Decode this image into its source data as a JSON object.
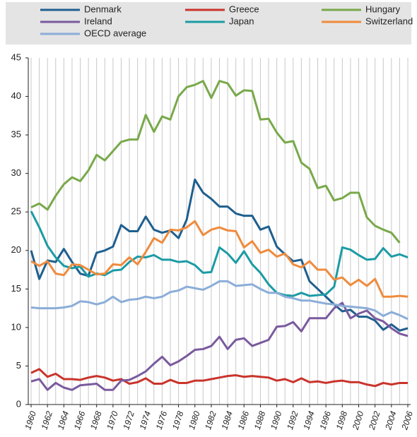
{
  "chart_data": {
    "type": "line",
    "x": [
      1960,
      1961,
      1962,
      1963,
      1964,
      1965,
      1966,
      1967,
      1968,
      1969,
      1970,
      1971,
      1972,
      1973,
      1974,
      1975,
      1976,
      1977,
      1978,
      1979,
      1980,
      1981,
      1982,
      1983,
      1984,
      1985,
      1986,
      1987,
      1988,
      1989,
      1990,
      1991,
      1992,
      1993,
      1994,
      1995,
      1996,
      1997,
      1998,
      1999,
      2000,
      2001,
      2002,
      2003,
      2004,
      2005,
      2006
    ],
    "xlim": [
      1960,
      2006
    ],
    "xticks": [
      1960,
      1962,
      1964,
      1966,
      1968,
      1970,
      1972,
      1974,
      1976,
      1978,
      1980,
      1982,
      1984,
      1986,
      1988,
      1990,
      1992,
      1994,
      1996,
      1998,
      2000,
      2002,
      2004,
      2006
    ],
    "ylim": [
      0,
      45
    ],
    "yticks": [
      0,
      5,
      10,
      15,
      20,
      25,
      30,
      35,
      40,
      45
    ],
    "grid": true,
    "legend": "top",
    "series": [
      {
        "name": "Denmark",
        "color": "#1f5f8f",
        "values": [
          20,
          16.3,
          18.7,
          18.5,
          20.2,
          18.5,
          17,
          16.7,
          19.7,
          20,
          20.5,
          23.3,
          22.5,
          22.5,
          24.4,
          22.7,
          22.3,
          22.6,
          21.6,
          24,
          29.2,
          27.5,
          26.7,
          25.7,
          25.7,
          24.8,
          24.5,
          24.5,
          22.7,
          23.1,
          20.5,
          19.5,
          18.6,
          18.8,
          16,
          15,
          14,
          13,
          12.1,
          12.3,
          11.4,
          11.4,
          10.9,
          9.7,
          10.4,
          9.6,
          9.9
        ]
      },
      {
        "name": "Greece",
        "color": "#c9342c",
        "values": [
          4.1,
          4.6,
          3.6,
          4.0,
          3.3,
          3.3,
          3.2,
          3.5,
          3.7,
          3.5,
          3.1,
          3.3,
          2.7,
          2.9,
          3.4,
          2.7,
          2.7,
          3.2,
          2.8,
          2.8,
          3.1,
          3.1,
          3.3,
          3.5,
          3.7,
          3.8,
          3.6,
          3.7,
          3.6,
          3.5,
          3.1,
          3.3,
          2.9,
          3.4,
          2.9,
          3.0,
          2.8,
          3.0,
          3.1,
          2.9,
          2.9,
          2.6,
          2.4,
          2.8,
          2.6,
          2.8,
          2.8
        ]
      },
      {
        "name": "Hungary",
        "color": "#78a94a",
        "values": [
          25.6,
          26.1,
          25.3,
          27.1,
          28.6,
          29.5,
          29.0,
          30.4,
          32.4,
          31.7,
          32.9,
          34.1,
          34.4,
          34.4,
          37.6,
          35.4,
          37.4,
          37.0,
          40.0,
          41.2,
          41.5,
          42.0,
          39.8,
          42.0,
          41.7,
          40.1,
          40.8,
          40.7,
          37.0,
          37.1,
          35.3,
          34.0,
          34.2,
          31.4,
          30.6,
          28.1,
          28.4,
          26.5,
          26.8,
          27.5,
          27.5,
          24.3,
          23.2,
          22.7,
          22.3,
          21.0,
          null
        ]
      },
      {
        "name": "Ireland",
        "color": "#7a5a9e",
        "values": [
          3.0,
          3.3,
          1.9,
          2.8,
          2.2,
          1.9,
          2.5,
          2.6,
          2.7,
          1.9,
          1.9,
          3.1,
          3.2,
          3.7,
          4.3,
          5.3,
          6.2,
          5.1,
          5.6,
          6.3,
          7.1,
          7.2,
          7.6,
          8.8,
          7.2,
          8.4,
          8.6,
          7.6,
          8.0,
          8.4,
          10.1,
          10.2,
          10.7,
          9.5,
          11.2,
          11.2,
          11.2,
          12.5,
          13.2,
          11.2,
          11.8,
          12.2,
          11.2,
          10.8,
          9.9,
          9.2,
          8.9
        ]
      },
      {
        "name": "Japan",
        "color": "#1b9ba5",
        "values": [
          25.1,
          23.0,
          20.6,
          19.1,
          18.0,
          17.7,
          17.9,
          16.6,
          17.0,
          16.8,
          17.4,
          17.5,
          18.5,
          19.2,
          19.1,
          19.4,
          18.8,
          18.8,
          18.5,
          18.6,
          18.1,
          17.1,
          17.2,
          20.4,
          19.6,
          18.4,
          19.9,
          18.2,
          17.1,
          15.6,
          14.5,
          14.2,
          14.1,
          14.5,
          14.1,
          14.2,
          14.3,
          15.3,
          20.4,
          20.1,
          19.4,
          18.8,
          18.9,
          20.3,
          19.2,
          19.5,
          19.1
        ]
      },
      {
        "name": "Switzerland",
        "color": "#ef8b3d",
        "values": [
          18.6,
          18.0,
          18.6,
          17.0,
          16.8,
          18.2,
          18.1,
          17.5,
          16.9,
          17.0,
          18.2,
          18.1,
          19.1,
          18.2,
          19.8,
          21.6,
          21.0,
          22.7,
          22.6,
          23.0,
          23.8,
          22.0,
          22.7,
          23.0,
          22.6,
          22.5,
          20.4,
          21.2,
          19.7,
          20.1,
          19.2,
          19.6,
          18.2,
          17.8,
          18.6,
          17.5,
          17.5,
          16.2,
          16.5,
          15.5,
          16.2,
          15.4,
          16.3,
          14.0,
          14.0,
          14.1,
          14.0
        ]
      },
      {
        "name": "OECD average",
        "color": "#8badd8",
        "values": [
          12.6,
          12.5,
          12.5,
          12.5,
          12.6,
          12.8,
          13.4,
          13.3,
          13.0,
          13.3,
          14.0,
          13.3,
          13.6,
          13.7,
          14.0,
          13.8,
          14.0,
          14.6,
          14.8,
          15.3,
          15.1,
          14.9,
          15.4,
          16.0,
          16.0,
          15.4,
          15.5,
          15.6,
          15.0,
          14.5,
          14.5,
          14.0,
          13.8,
          13.5,
          13.5,
          13.3,
          13.1,
          13.0,
          12.8,
          12.7,
          12.6,
          12.5,
          12.2,
          11.5,
          12.0,
          11.6,
          11.1
        ]
      }
    ]
  }
}
